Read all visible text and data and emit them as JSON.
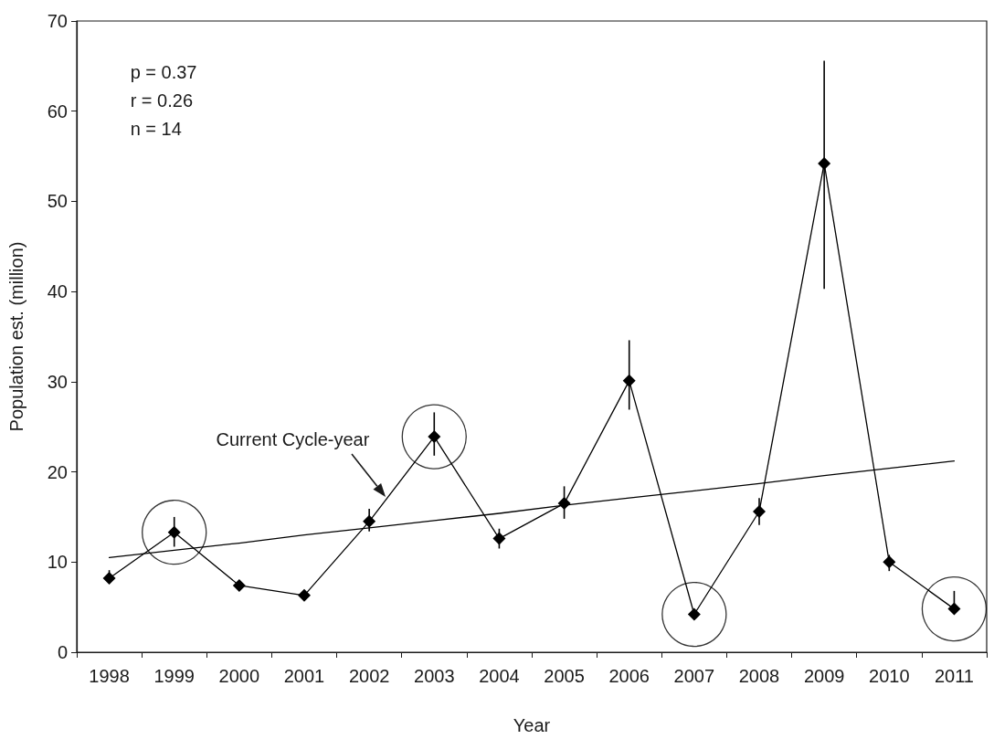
{
  "chart_data": {
    "type": "line",
    "xlabel": "Year",
    "ylabel": "Population est. (million)",
    "annotations": [
      "p = 0.37",
      "r = 0.26",
      "n = 14",
      "Current Cycle-year"
    ],
    "categories": [
      "1998",
      "1999",
      "2000",
      "2001",
      "2002",
      "2003",
      "2004",
      "2005",
      "2006",
      "2007",
      "2008",
      "2009",
      "2010",
      "2011"
    ],
    "ylim": [
      0,
      70
    ],
    "yticks": [
      0,
      10,
      20,
      30,
      40,
      50,
      60,
      70
    ],
    "grid": false,
    "series": [
      {
        "color": "#000000",
        "marker": "diamond",
        "line_style": "solid",
        "values": [
          8.2,
          13.3,
          7.4,
          6.3,
          14.5,
          23.9,
          12.6,
          16.5,
          30.1,
          4.2,
          15.6,
          54.2,
          10.0,
          4.8
        ],
        "errors": [
          [
            8.0,
            9.1
          ],
          [
            11.7,
            15.0
          ],
          null,
          null,
          [
            13.4,
            15.9
          ],
          [
            21.8,
            26.6
          ],
          [
            11.5,
            13.7
          ],
          [
            14.8,
            18.4
          ],
          [
            26.9,
            34.6
          ],
          null,
          [
            14.1,
            17.1
          ],
          [
            40.3,
            65.6
          ],
          [
            9.0,
            10.8
          ],
          [
            4.8,
            6.8
          ]
        ]
      },
      {
        "type": "scatter",
        "color": "#000000",
        "values": [
          null,
          13.3,
          null,
          null,
          null,
          23.9,
          null,
          null,
          null,
          4.2,
          null,
          null,
          null,
          4.8
        ]
      },
      {
        "type": "line",
        "color": "#000000",
        "marker": "none",
        "line_style": "solid",
        "values": [
          10.5,
          11.3,
          12.1,
          13.0,
          13.8,
          14.6,
          15.4,
          16.3,
          17.1,
          17.9,
          18.7,
          19.6,
          20.4,
          21.2
        ]
      }
    ]
  }
}
